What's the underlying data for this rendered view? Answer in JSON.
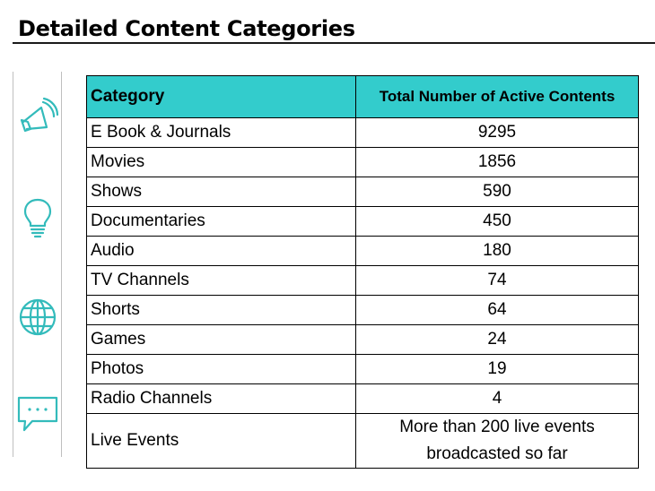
{
  "title": "Detailed Content Categories",
  "theme": {
    "accent": "#33cccc",
    "icon_color": "#33bbbb"
  },
  "sidebar": {
    "icons": [
      "megaphone-icon",
      "lightbulb-icon",
      "globe-icon",
      "chat-bubble-icon"
    ]
  },
  "table": {
    "headers": {
      "category": "Category",
      "total": "Total Number of Active Contents"
    },
    "rows": [
      {
        "category": "E Book & Journals",
        "total": "9295"
      },
      {
        "category": "Movies",
        "total": "1856"
      },
      {
        "category": "Shows",
        "total": "590"
      },
      {
        "category": "Documentaries",
        "total": "450"
      },
      {
        "category": "Audio",
        "total": "180"
      },
      {
        "category": "TV Channels",
        "total": "74"
      },
      {
        "category": "Shorts",
        "total": "64"
      },
      {
        "category": "Games",
        "total": "24"
      },
      {
        "category": "Photos",
        "total": "19"
      },
      {
        "category": "Radio Channels",
        "total": "4"
      }
    ],
    "last_row": {
      "category": "Live Events",
      "total_line1": "More than 200 live events",
      "total_line2": "broadcasted so far"
    }
  }
}
